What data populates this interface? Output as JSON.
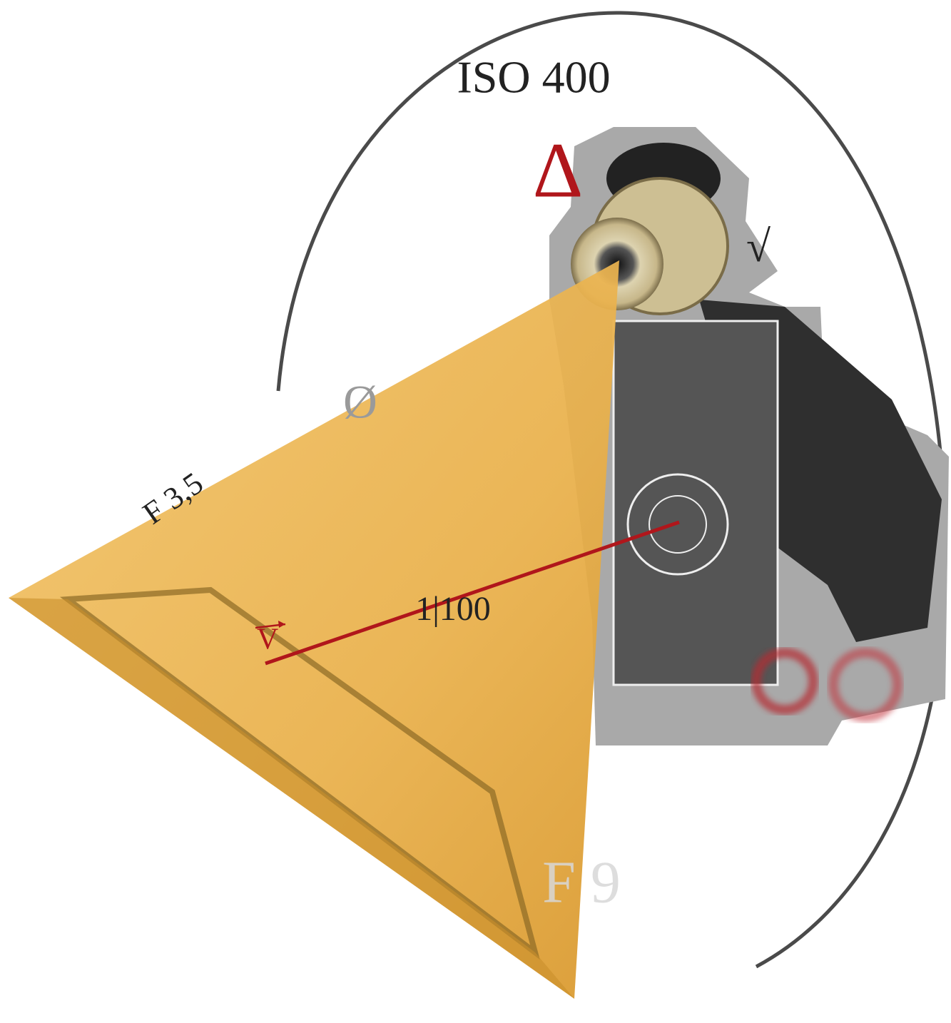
{
  "labels": {
    "iso": "ISO 400",
    "delta": "Δ",
    "root": "√",
    "empty": "Ø",
    "aperture_open": "F 3,5",
    "shutter": "1|100",
    "vector": "V",
    "aperture_closed": "F 9"
  }
}
